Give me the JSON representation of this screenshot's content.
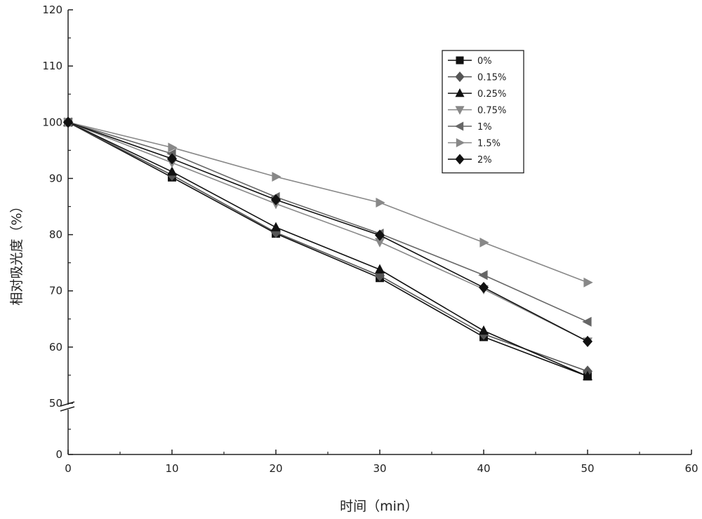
{
  "chart_data": {
    "type": "line",
    "xlabel": "时间（min）",
    "ylabel": "相对吸光度（%）",
    "xlim": [
      0,
      60
    ],
    "ylim_display": [
      0,
      120
    ],
    "y_axis_break": "between 0 and 50",
    "x_ticks": [
      0,
      10,
      20,
      30,
      40,
      50,
      60
    ],
    "x_tick_labels": [
      "0",
      "10",
      "20",
      "30",
      "40",
      "50",
      "60"
    ],
    "y_ticks": [
      0,
      50,
      60,
      70,
      80,
      90,
      100,
      110,
      120
    ],
    "y_tick_labels": [
      "0",
      "50",
      "60",
      "70",
      "80",
      "90",
      "100",
      "110",
      "120"
    ],
    "x": [
      0,
      10,
      20,
      30,
      40,
      50
    ],
    "legend_position": "top-right",
    "series": [
      {
        "name": "0%",
        "marker": "square",
        "color": "#111111",
        "values": [
          100,
          90.2,
          80.2,
          72.3,
          61.8,
          54.8
        ]
      },
      {
        "name": "0.15%",
        "marker": "diamond",
        "color": "#555555",
        "values": [
          100,
          90.6,
          80.4,
          72.7,
          62.3,
          55.7
        ]
      },
      {
        "name": "0.25%",
        "marker": "triangle-up",
        "color": "#111111",
        "values": [
          100,
          91.2,
          81.3,
          73.8,
          62.9,
          54.8
        ]
      },
      {
        "name": "0.75%",
        "marker": "triangle-down",
        "color": "#888888",
        "values": [
          100,
          92.8,
          85.5,
          78.7,
          70.3,
          61.0
        ]
      },
      {
        "name": "1%",
        "marker": "triangle-left",
        "color": "#666666",
        "values": [
          100,
          94.4,
          86.7,
          80.2,
          72.8,
          64.5
        ]
      },
      {
        "name": "1.5%",
        "marker": "triangle-right",
        "color": "#888888",
        "values": [
          100,
          95.5,
          90.3,
          85.7,
          78.6,
          71.5
        ]
      },
      {
        "name": "2%",
        "marker": "diamond",
        "color": "#111111",
        "values": [
          100,
          93.5,
          86.2,
          79.9,
          70.6,
          61.0
        ]
      }
    ]
  }
}
